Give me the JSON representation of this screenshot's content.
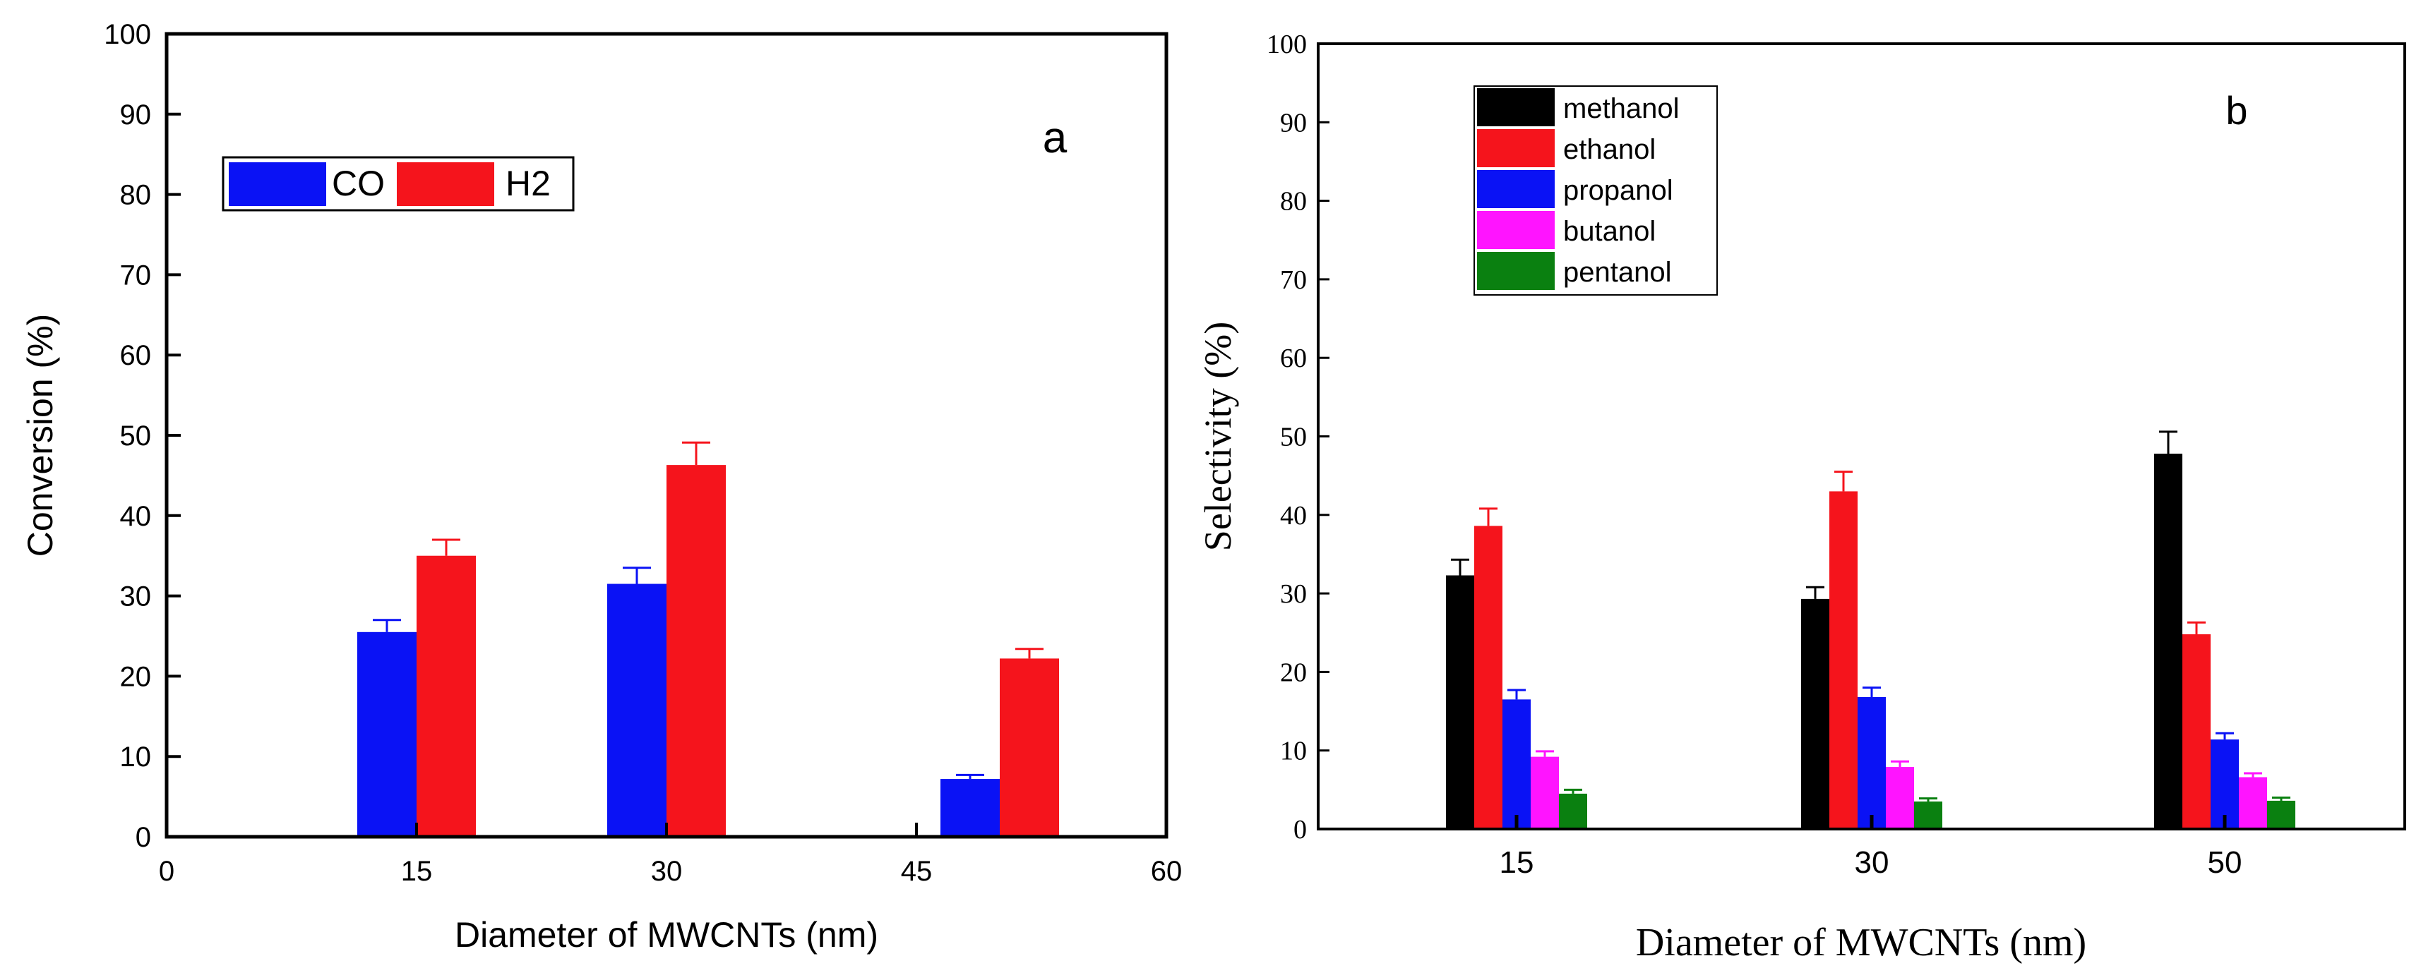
{
  "chart_data": [
    {
      "type": "bar",
      "panel_label": "a",
      "title": "",
      "xlabel": "Diameter of MWCNTs (nm)",
      "ylabel": "Conversion (%)",
      "xlim": [
        0,
        60
      ],
      "ylim": [
        0,
        100
      ],
      "xticks": [
        0,
        15,
        30,
        45,
        60
      ],
      "yticks": [
        0,
        10,
        20,
        30,
        40,
        50,
        60,
        70,
        80,
        90,
        100
      ],
      "categories": [
        "15",
        "30",
        "50"
      ],
      "category_x": [
        15,
        30,
        50
      ],
      "series": [
        {
          "name": "CO",
          "color": "#0a12f5",
          "values": [
            25.5,
            31.5,
            7.2
          ],
          "errors": [
            1.5,
            2.0,
            0.5
          ]
        },
        {
          "name": "H2",
          "color": "#f5141c",
          "values": [
            35.0,
            46.3,
            22.2
          ],
          "errors": [
            2.0,
            2.8,
            1.2
          ]
        }
      ],
      "legend": {
        "position": "top-left",
        "orientation": "horizontal"
      },
      "grid": false
    },
    {
      "type": "bar",
      "panel_label": "b",
      "title": "",
      "xlabel": "Diameter of MWCNTs (nm)",
      "ylabel": "Selectivity (%)",
      "ylim": [
        0,
        100
      ],
      "yticks": [
        0,
        10,
        20,
        30,
        40,
        50,
        60,
        70,
        80,
        90,
        100
      ],
      "categories": [
        "15",
        "30",
        "50"
      ],
      "series": [
        {
          "name": "methanol",
          "color": "#000000",
          "values": [
            32.3,
            29.3,
            47.8
          ],
          "errors": [
            2.0,
            1.5,
            2.8
          ]
        },
        {
          "name": "ethanol",
          "color": "#f5141c",
          "values": [
            38.6,
            43.0,
            24.8
          ],
          "errors": [
            2.2,
            2.5,
            1.5
          ]
        },
        {
          "name": "propanol",
          "color": "#0a12f5",
          "values": [
            16.5,
            16.8,
            11.4
          ],
          "errors": [
            1.2,
            1.2,
            0.8
          ]
        },
        {
          "name": "butanol",
          "color": "#ff14ff",
          "values": [
            9.2,
            7.9,
            6.6
          ],
          "errors": [
            0.7,
            0.7,
            0.5
          ]
        },
        {
          "name": "pentanol",
          "color": "#0a8010",
          "values": [
            4.5,
            3.5,
            3.6
          ],
          "errors": [
            0.5,
            0.4,
            0.4
          ]
        }
      ],
      "legend": {
        "position": "top-left",
        "orientation": "vertical"
      },
      "grid": false
    }
  ]
}
